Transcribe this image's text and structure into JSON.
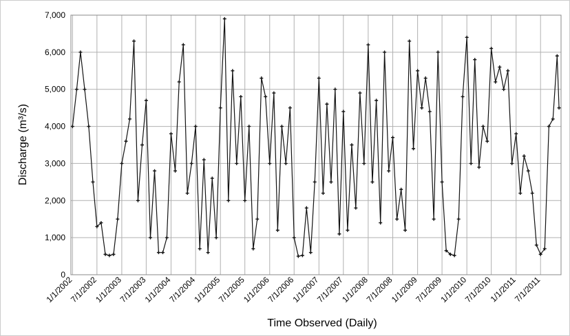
{
  "chart_data": {
    "type": "line",
    "y_label": "Discharge  (m³/s)",
    "x_label": "Time Observed (Daily)",
    "xlim": [
      "12/20/2001",
      "11/30/2011"
    ],
    "xticks": [
      "1/1/2002",
      "7/1/2002",
      "1/1/2003",
      "7/1/2003",
      "1/1/2004",
      "7/1/2004",
      "1/1/2005",
      "7/1/2005",
      "1/1/2006",
      "7/1/2006",
      "1/1/2007",
      "7/1/2007",
      "1/1/2008",
      "7/1/2008",
      "1/1/2009",
      "7/1/2009",
      "1/1/2010",
      "7/1/2010",
      "1/1/2011",
      "7/1/2011"
    ],
    "ylim": [
      0,
      7000
    ],
    "yticks": [
      0,
      {
        "value": 1000,
        "label": "1,000"
      },
      {
        "value": 2000,
        "label": "2,000"
      },
      {
        "value": 3000,
        "label": "3,000"
      },
      {
        "value": 4000,
        "label": "4,000"
      },
      {
        "value": 5000,
        "label": "5,000"
      },
      {
        "value": 6000,
        "label": "6,000"
      },
      {
        "value": 7000,
        "label": "7,000"
      }
    ],
    "grid": true,
    "series": [
      {
        "color": "#111111",
        "x": [
          "1/1/2002",
          "2/1/2002",
          "3/1/2002",
          "4/1/2002",
          "5/1/2002",
          "6/1/2002",
          "7/1/2002",
          "8/1/2002",
          "9/1/2002",
          "10/1/2002",
          "11/1/2002",
          "12/1/2002",
          "1/1/2003",
          "2/1/2003",
          "3/1/2003",
          "4/1/2003",
          "5/1/2003",
          "6/1/2003",
          "7/1/2003",
          "8/1/2003",
          "9/1/2003",
          "10/1/2003",
          "11/1/2003",
          "12/1/2003",
          "1/1/2004",
          "2/1/2004",
          "3/1/2004",
          "4/1/2004",
          "5/1/2004",
          "6/1/2004",
          "7/1/2004",
          "8/1/2004",
          "9/1/2004",
          "10/1/2004",
          "11/1/2004",
          "12/1/2004",
          "1/1/2005",
          "2/1/2005",
          "3/1/2005",
          "4/1/2005",
          "5/1/2005",
          "6/1/2005",
          "7/1/2005",
          "8/1/2005",
          "9/1/2005",
          "10/1/2005",
          "11/1/2005",
          "12/1/2005",
          "1/1/2006",
          "2/1/2006",
          "3/1/2006",
          "4/1/2006",
          "5/1/2006",
          "6/1/2006",
          "7/1/2006",
          "8/1/2006",
          "9/1/2006",
          "10/1/2006",
          "11/1/2006",
          "12/1/2006",
          "1/1/2007",
          "2/1/2007",
          "3/1/2007",
          "4/1/2007",
          "5/1/2007",
          "6/1/2007",
          "7/1/2007",
          "8/1/2007",
          "9/1/2007",
          "10/1/2007",
          "11/1/2007",
          "12/1/2007",
          "1/1/2008",
          "2/1/2008",
          "3/1/2008",
          "4/1/2008",
          "5/1/2008",
          "6/1/2008",
          "7/1/2008",
          "8/1/2008",
          "9/1/2008",
          "10/1/2008",
          "11/1/2008",
          "12/1/2008",
          "1/1/2009",
          "2/1/2009",
          "3/1/2009",
          "4/1/2009",
          "5/1/2009",
          "6/1/2009",
          "7/1/2009",
          "8/1/2009",
          "9/1/2009",
          "10/1/2009",
          "11/1/2009",
          "12/1/2009",
          "1/1/2010",
          "2/1/2010",
          "3/1/2010",
          "4/1/2010",
          "5/1/2010",
          "6/1/2010",
          "7/1/2010",
          "8/1/2010",
          "9/1/2010",
          "10/1/2010",
          "11/1/2010",
          "12/1/2010",
          "1/1/2011",
          "2/1/2011",
          "3/1/2011",
          "4/1/2011",
          "5/1/2011",
          "6/1/2011",
          "7/1/2011",
          "8/1/2011",
          "9/1/2011",
          "10/1/2011",
          "11/1/2011",
          "11/15/2011"
        ],
        "values": [
          4000,
          5000,
          6000,
          5000,
          4000,
          2500,
          1300,
          1400,
          550,
          520,
          550,
          1500,
          3000,
          3600,
          4200,
          6300,
          2000,
          3500,
          4700,
          1000,
          2800,
          600,
          600,
          1000,
          3800,
          2800,
          5200,
          6200,
          2200,
          3000,
          4000,
          700,
          3100,
          600,
          2600,
          1000,
          4500,
          6900,
          2000,
          5500,
          3000,
          4800,
          2000,
          4000,
          700,
          1500,
          5300,
          4800,
          3000,
          4900,
          1200,
          4000,
          3000,
          4500,
          1000,
          500,
          520,
          1800,
          600,
          2500,
          5300,
          2200,
          4600,
          2500,
          5000,
          1100,
          4400,
          1200,
          3500,
          1800,
          4900,
          3000,
          6200,
          2500,
          4700,
          1400,
          6000,
          2800,
          3700,
          1500,
          2300,
          1200,
          6300,
          3400,
          5500,
          4500,
          5300,
          4400,
          1500,
          6000,
          2500,
          650,
          550,
          520,
          1500,
          4800,
          6400,
          3000,
          5800,
          2900,
          4000,
          3600,
          6100,
          5200,
          5600,
          5000,
          5500,
          3000,
          3800,
          2200,
          3200,
          2800,
          2200,
          800,
          550,
          700,
          4000,
          4200,
          5900,
          4500
        ]
      }
    ]
  }
}
